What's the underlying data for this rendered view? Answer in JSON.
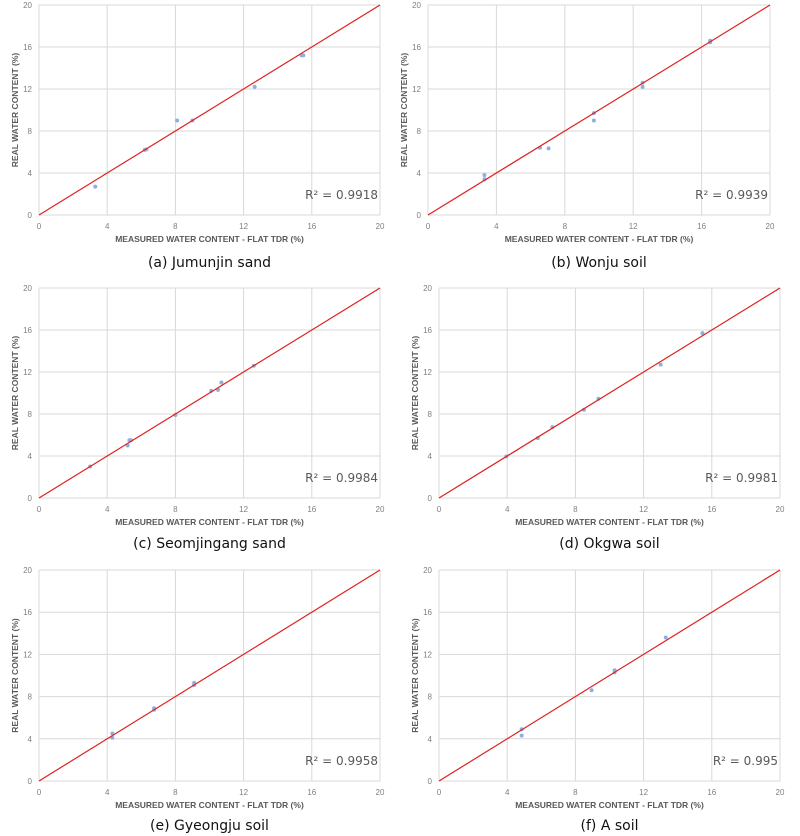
{
  "chart_data": [
    {
      "type": "scatter",
      "caption": "(a)  Jumunjin  sand",
      "xlabel": "MEASURED WATER CONTENT - FLAT TDR (%)",
      "ylabel": "REAL WATER CONTENT  (%)",
      "xlim": [
        0,
        20
      ],
      "ylim": [
        0,
        20
      ],
      "ticks": [
        0,
        4,
        8,
        12,
        16,
        20
      ],
      "grid": true,
      "fit_line": "y = x",
      "r2_label": "R² = 0.9918",
      "points": [
        [
          3.3,
          2.7
        ],
        [
          6.2,
          6.2
        ],
        [
          6.3,
          6.25
        ],
        [
          8.1,
          9.0
        ],
        [
          9.0,
          9.0
        ],
        [
          12.65,
          12.2
        ],
        [
          15.4,
          15.2
        ],
        [
          15.5,
          15.2
        ]
      ]
    },
    {
      "type": "scatter",
      "caption": "(b)  Wonju  soil",
      "xlabel": "MEASURED WATER CONTENT - FLAT TDR (%)",
      "ylabel": "REAL WATER CONTENT  (%)",
      "xlim": [
        0,
        20
      ],
      "ylim": [
        0,
        20
      ],
      "ticks": [
        0,
        4,
        8,
        12,
        16,
        20
      ],
      "grid": true,
      "fit_line": "y = x",
      "r2_label": "R² = 0.9939",
      "points": [
        [
          3.3,
          3.8
        ],
        [
          3.3,
          3.4
        ],
        [
          6.55,
          6.4
        ],
        [
          7.05,
          6.35
        ],
        [
          9.7,
          9.7
        ],
        [
          9.7,
          9.0
        ],
        [
          12.55,
          12.6
        ],
        [
          12.55,
          12.2
        ],
        [
          16.5,
          16.6
        ],
        [
          16.5,
          16.45
        ]
      ]
    },
    {
      "type": "scatter",
      "caption": "(c)  Seomjingang  sand",
      "xlabel": "MEASURED WATER CONTENT - FLAT TDR (%)",
      "ylabel": "REAL WATER CONTENT  (%)",
      "xlim": [
        0,
        20
      ],
      "ylim": [
        0,
        20
      ],
      "ticks": [
        0,
        4,
        8,
        12,
        16,
        20
      ],
      "grid": true,
      "fit_line": "y = x",
      "r2_label": "R² = 0.9984",
      "points": [
        [
          3.0,
          3.0
        ],
        [
          5.2,
          5.0
        ],
        [
          5.3,
          5.5
        ],
        [
          5.4,
          5.5
        ],
        [
          8.0,
          7.9
        ],
        [
          10.1,
          10.2
        ],
        [
          10.5,
          10.3
        ],
        [
          10.7,
          11.0
        ],
        [
          12.6,
          12.6
        ]
      ]
    },
    {
      "type": "scatter",
      "caption": "(d)  Okgwa  soil",
      "xlabel": "MEASURED WATER CONTENT - FLAT TDR (%)",
      "ylabel": "REAL WATER CONTENT  (%)",
      "xlim": [
        0,
        20
      ],
      "ylim": [
        0,
        20
      ],
      "ticks": [
        0,
        4,
        8,
        12,
        16,
        20
      ],
      "grid": true,
      "fit_line": "y = x",
      "r2_label": "R² = 0.9981",
      "points": [
        [
          3.95,
          3.95
        ],
        [
          5.8,
          5.7
        ],
        [
          6.65,
          6.75
        ],
        [
          8.5,
          8.4
        ],
        [
          9.35,
          9.45
        ],
        [
          13.0,
          12.7
        ],
        [
          15.45,
          15.7
        ]
      ]
    },
    {
      "type": "scatter",
      "caption": "(e)  Gyeongju  soil",
      "xlabel": "MEASURED WATER CONTENT - FLAT TDR (%)",
      "ylabel": "REAL WATER CONTENT  (%)",
      "xlim": [
        0,
        20
      ],
      "ylim": [
        0,
        20
      ],
      "ticks": [
        0,
        4,
        8,
        12,
        16,
        20
      ],
      "grid": true,
      "fit_line": "y = x",
      "r2_label": "R² = 0.9958",
      "points": [
        [
          4.3,
          4.5
        ],
        [
          4.3,
          4.1
        ],
        [
          6.75,
          6.9
        ],
        [
          6.75,
          6.75
        ],
        [
          9.1,
          9.3
        ],
        [
          9.1,
          9.1
        ]
      ]
    },
    {
      "type": "scatter",
      "caption": "(f)  A  soil",
      "xlabel": "MEASURED WATER CONTENT - FLAT TDR (%)",
      "ylabel": "REAL WATER CONTENT  (%)",
      "xlim": [
        0,
        20
      ],
      "ylim": [
        0,
        20
      ],
      "ticks": [
        0,
        4,
        8,
        12,
        16,
        20
      ],
      "grid": true,
      "fit_line": "y = x",
      "r2_label": "R² = 0.995",
      "points": [
        [
          4.85,
          4.9
        ],
        [
          4.85,
          4.3
        ],
        [
          8.95,
          8.6
        ],
        [
          10.3,
          10.5
        ],
        [
          10.3,
          10.3
        ],
        [
          13.3,
          13.6
        ]
      ]
    }
  ],
  "colors": {
    "points": "#8fb0dc",
    "fit_line": "#e02020",
    "grid": "#d9d9d9",
    "tick_text": "#7f7f7f",
    "label_text": "#595959"
  }
}
